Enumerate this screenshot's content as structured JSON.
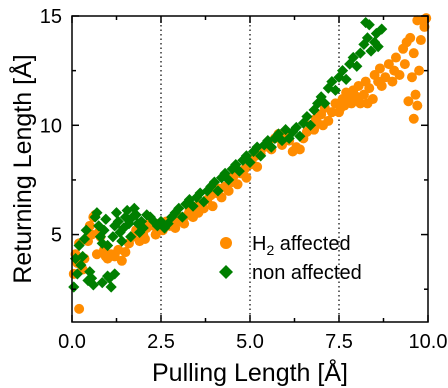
{
  "chart_data": {
    "type": "scatter",
    "title": "",
    "xlabel": "Pulling Length [Å]",
    "ylabel": "Returning Length [Å]",
    "xlim": [
      0,
      10
    ],
    "ylim": [
      1,
      15
    ],
    "xticks": [
      "0.0",
      "2.5",
      "5.0",
      "7.5",
      "10.0"
    ],
    "yticks": [
      "5",
      "10",
      "15"
    ],
    "vlines": [
      2.5,
      5.0,
      7.5
    ],
    "grid": false,
    "legend_position": "bottom-right",
    "series": [
      {
        "name": "H2 affected",
        "label_main": "H",
        "label_sub": "2",
        "label_rest": " affected",
        "color": "#ff8c00",
        "marker": "circle",
        "points": [
          [
            0.05,
            3.2
          ],
          [
            0.1,
            4.1
          ],
          [
            0.15,
            3.7
          ],
          [
            0.2,
            4.6
          ],
          [
            0.2,
            1.6
          ],
          [
            0.3,
            3.4
          ],
          [
            0.35,
            3.9
          ],
          [
            0.45,
            4.7
          ],
          [
            0.5,
            5.4
          ],
          [
            0.55,
            5.0
          ],
          [
            0.6,
            5.8
          ],
          [
            0.65,
            5.9
          ],
          [
            0.7,
            4.1
          ],
          [
            0.75,
            5.1
          ],
          [
            0.8,
            4.9
          ],
          [
            0.9,
            4.3
          ],
          [
            0.95,
            4.0
          ],
          [
            1.0,
            3.9
          ],
          [
            1.1,
            4.1
          ],
          [
            1.2,
            4.0
          ],
          [
            1.3,
            4.3
          ],
          [
            1.4,
            3.8
          ],
          [
            1.5,
            4.2
          ],
          [
            1.6,
            4.6
          ],
          [
            1.7,
            4.9
          ],
          [
            1.8,
            5.2
          ],
          [
            1.9,
            4.7
          ],
          [
            2.0,
            5.0
          ],
          [
            2.05,
            4.8
          ],
          [
            2.1,
            5.3
          ],
          [
            2.2,
            5.6
          ],
          [
            2.3,
            5.4
          ],
          [
            2.35,
            5.0
          ],
          [
            2.45,
            5.5
          ],
          [
            2.55,
            5.2
          ],
          [
            2.65,
            5.6
          ],
          [
            2.75,
            5.4
          ],
          [
            2.85,
            5.7
          ],
          [
            2.9,
            5.3
          ],
          [
            3.0,
            5.6
          ],
          [
            3.05,
            5.8
          ],
          [
            3.15,
            5.5
          ],
          [
            3.25,
            5.9
          ],
          [
            3.3,
            6.1
          ],
          [
            3.4,
            5.8
          ],
          [
            3.5,
            6.3
          ],
          [
            3.55,
            6.0
          ],
          [
            3.65,
            6.4
          ],
          [
            3.7,
            6.2
          ],
          [
            3.8,
            6.6
          ],
          [
            3.9,
            6.8
          ],
          [
            3.95,
            6.3
          ],
          [
            4.05,
            6.9
          ],
          [
            4.15,
            7.1
          ],
          [
            4.2,
            6.7
          ],
          [
            4.3,
            7.2
          ],
          [
            4.4,
            7.0
          ],
          [
            4.5,
            7.4
          ],
          [
            4.55,
            7.7
          ],
          [
            4.65,
            7.3
          ],
          [
            4.75,
            7.8
          ],
          [
            4.85,
            8.0
          ],
          [
            4.9,
            7.6
          ],
          [
            5.0,
            8.2
          ],
          [
            5.05,
            8.4
          ],
          [
            5.15,
            8.6
          ],
          [
            5.2,
            8.1
          ],
          [
            5.3,
            8.7
          ],
          [
            5.4,
            9.0
          ],
          [
            5.5,
            9.2
          ],
          [
            5.6,
            8.9
          ],
          [
            5.7,
            9.4
          ],
          [
            5.8,
            9.6
          ],
          [
            5.9,
            9.1
          ],
          [
            6.0,
            9.5
          ],
          [
            6.1,
            9.3
          ],
          [
            6.2,
            8.8
          ],
          [
            6.3,
            9.0
          ],
          [
            6.4,
            8.9
          ],
          [
            6.5,
            9.4
          ],
          [
            6.6,
            9.7
          ],
          [
            6.7,
            10.0
          ],
          [
            6.8,
            9.8
          ],
          [
            6.85,
            10.3
          ],
          [
            6.9,
            10.1
          ],
          [
            7.0,
            10.5
          ],
          [
            7.05,
            10.0
          ],
          [
            7.1,
            10.8
          ],
          [
            7.2,
            10.2
          ],
          [
            7.3,
            10.6
          ],
          [
            7.4,
            11.0
          ],
          [
            7.5,
            10.6
          ],
          [
            7.6,
            11.2
          ],
          [
            7.65,
            10.9
          ],
          [
            7.7,
            11.5
          ],
          [
            7.8,
            11.2
          ],
          [
            7.85,
            11.0
          ],
          [
            7.9,
            11.6
          ],
          [
            8.0,
            11.3
          ],
          [
            8.05,
            11.8
          ],
          [
            8.1,
            11.0
          ],
          [
            8.2,
            11.4
          ],
          [
            8.3,
            11.0
          ],
          [
            8.35,
            11.7
          ],
          [
            8.45,
            11.2
          ],
          [
            8.5,
            12.3
          ],
          [
            8.6,
            12.0
          ],
          [
            8.65,
            12.6
          ],
          [
            8.7,
            11.8
          ],
          [
            8.8,
            12.2
          ],
          [
            8.9,
            12.8
          ],
          [
            9.0,
            12.0
          ],
          [
            9.05,
            12.5
          ],
          [
            9.1,
            13.1
          ],
          [
            9.2,
            12.3
          ],
          [
            9.3,
            13.5
          ],
          [
            9.35,
            12.8
          ],
          [
            9.4,
            13.8
          ],
          [
            9.5,
            14.0
          ],
          [
            9.55,
            12.2
          ],
          [
            9.6,
            13.3
          ],
          [
            9.65,
            11.4
          ],
          [
            9.7,
            14.8
          ],
          [
            9.75,
            12.5
          ],
          [
            9.8,
            13.9
          ],
          [
            9.85,
            14.8
          ],
          [
            9.9,
            14.5
          ],
          [
            9.95,
            14.9
          ],
          [
            9.7,
            10.9
          ],
          [
            9.6,
            10.3
          ],
          [
            8.25,
            12.0
          ],
          [
            7.55,
            10.8
          ],
          [
            9.45,
            11.1
          ]
        ]
      },
      {
        "name": "non affected",
        "label_main": "non affected",
        "label_sub": "",
        "label_rest": "",
        "color": "#007f00",
        "marker": "diamond",
        "points": [
          [
            0.05,
            2.6
          ],
          [
            0.1,
            3.9
          ],
          [
            0.15,
            3.2
          ],
          [
            0.2,
            4.5
          ],
          [
            0.25,
            3.6
          ],
          [
            0.3,
            4.0
          ],
          [
            0.35,
            4.8
          ],
          [
            0.4,
            5.2
          ],
          [
            0.45,
            2.9
          ],
          [
            0.5,
            3.3
          ],
          [
            0.55,
            3.0
          ],
          [
            0.6,
            2.7
          ],
          [
            0.65,
            5.8
          ],
          [
            0.7,
            6.0
          ],
          [
            0.75,
            5.4
          ],
          [
            0.8,
            4.9
          ],
          [
            0.85,
            4.6
          ],
          [
            0.9,
            5.2
          ],
          [
            0.95,
            5.7
          ],
          [
            1.0,
            4.5
          ],
          [
            1.05,
            3.0
          ],
          [
            1.1,
            2.6
          ],
          [
            1.15,
            4.9
          ],
          [
            1.2,
            5.4
          ],
          [
            1.25,
            6.0
          ],
          [
            1.3,
            5.6
          ],
          [
            1.35,
            5.1
          ],
          [
            1.4,
            4.7
          ],
          [
            1.45,
            5.3
          ],
          [
            1.5,
            5.8
          ],
          [
            1.55,
            6.1
          ],
          [
            1.6,
            5.5
          ],
          [
            1.65,
            4.9
          ],
          [
            1.7,
            5.8
          ],
          [
            1.75,
            6.2
          ],
          [
            1.8,
            5.9
          ],
          [
            1.85,
            5.5
          ],
          [
            1.9,
            5.1
          ],
          [
            1.95,
            5.6
          ],
          [
            2.0,
            5.3
          ],
          [
            2.1,
            5.9
          ],
          [
            2.2,
            5.8
          ],
          [
            2.3,
            5.6
          ],
          [
            2.4,
            5.4
          ],
          [
            2.5,
            5.6
          ],
          [
            2.6,
            5.3
          ],
          [
            2.7,
            5.5
          ],
          [
            2.8,
            5.8
          ],
          [
            2.9,
            6.0
          ],
          [
            3.0,
            6.2
          ],
          [
            3.1,
            5.8
          ],
          [
            3.2,
            6.4
          ],
          [
            3.3,
            6.6
          ],
          [
            3.4,
            6.3
          ],
          [
            3.5,
            6.7
          ],
          [
            3.6,
            6.9
          ],
          [
            3.7,
            6.5
          ],
          [
            3.8,
            7.0
          ],
          [
            3.9,
            7.2
          ],
          [
            4.0,
            7.4
          ],
          [
            4.1,
            7.0
          ],
          [
            4.2,
            7.6
          ],
          [
            4.3,
            7.8
          ],
          [
            4.4,
            7.5
          ],
          [
            4.5,
            8.0
          ],
          [
            4.6,
            8.2
          ],
          [
            4.7,
            7.9
          ],
          [
            4.8,
            8.4
          ],
          [
            4.9,
            8.6
          ],
          [
            5.0,
            8.3
          ],
          [
            5.1,
            8.8
          ],
          [
            5.2,
            9.0
          ],
          [
            5.3,
            8.6
          ],
          [
            5.4,
            9.1
          ],
          [
            5.5,
            9.3
          ],
          [
            5.6,
            9.0
          ],
          [
            5.7,
            9.4
          ],
          [
            5.8,
            9.6
          ],
          [
            5.9,
            9.3
          ],
          [
            6.0,
            9.8
          ],
          [
            6.1,
            9.4
          ],
          [
            6.2,
            9.7
          ],
          [
            6.3,
            9.9
          ],
          [
            6.4,
            9.5
          ],
          [
            6.5,
            10.1
          ],
          [
            6.6,
            10.4
          ],
          [
            6.7,
            10.0
          ],
          [
            6.8,
            10.7
          ],
          [
            6.9,
            11.0
          ],
          [
            7.0,
            11.3
          ],
          [
            7.1,
            11.0
          ],
          [
            7.2,
            11.7
          ],
          [
            7.3,
            12.0
          ],
          [
            7.4,
            11.6
          ],
          [
            7.5,
            12.2
          ],
          [
            7.6,
            12.5
          ],
          [
            7.7,
            12.1
          ],
          [
            7.8,
            12.8
          ],
          [
            7.9,
            13.1
          ],
          [
            8.0,
            12.7
          ],
          [
            8.1,
            13.3
          ],
          [
            8.2,
            13.7
          ],
          [
            8.3,
            14.0
          ],
          [
            8.35,
            14.6
          ],
          [
            8.4,
            13.4
          ],
          [
            8.5,
            13.8
          ],
          [
            8.55,
            14.2
          ],
          [
            8.6,
            13.6
          ],
          [
            8.7,
            14.4
          ],
          [
            8.25,
            14.7
          ],
          [
            1.0,
            3.1
          ],
          [
            0.85,
            2.8
          ],
          [
            1.2,
            3.2
          ]
        ]
      }
    ]
  }
}
